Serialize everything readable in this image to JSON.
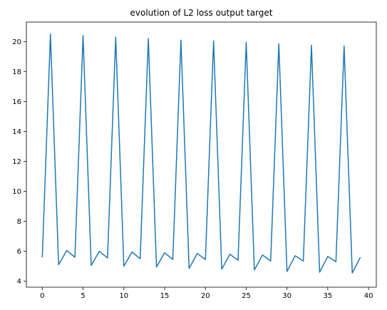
{
  "chart_data": {
    "type": "line",
    "title": "evolution of L2 loss output target",
    "xlabel": "",
    "ylabel": "",
    "xlim": [
      -1.95,
      40.95
    ],
    "ylim": [
      3.6,
      21.3
    ],
    "xticks": [
      0,
      5,
      10,
      15,
      20,
      25,
      30,
      35,
      40
    ],
    "yticks": [
      4,
      6,
      8,
      10,
      12,
      14,
      16,
      18,
      20
    ],
    "grid": false,
    "series": [
      {
        "color": "#1f77b4",
        "x": [
          0,
          1,
          2,
          3,
          4,
          5,
          6,
          7,
          8,
          9,
          10,
          11,
          12,
          13,
          14,
          15,
          16,
          17,
          18,
          19,
          20,
          21,
          22,
          23,
          24,
          25,
          26,
          27,
          28,
          29,
          30,
          31,
          32,
          33,
          34,
          35,
          36,
          37,
          38,
          39
        ],
        "y": [
          5.6,
          20.5,
          5.1,
          6.05,
          5.6,
          20.4,
          5.05,
          6.0,
          5.55,
          20.3,
          5.0,
          5.95,
          5.5,
          20.2,
          4.95,
          5.9,
          5.45,
          20.1,
          4.85,
          5.85,
          5.45,
          20.05,
          4.8,
          5.8,
          5.4,
          19.95,
          4.75,
          5.75,
          5.35,
          19.85,
          4.65,
          5.7,
          5.35,
          19.75,
          4.6,
          5.65,
          5.3,
          19.7,
          4.55,
          5.6
        ]
      }
    ]
  }
}
